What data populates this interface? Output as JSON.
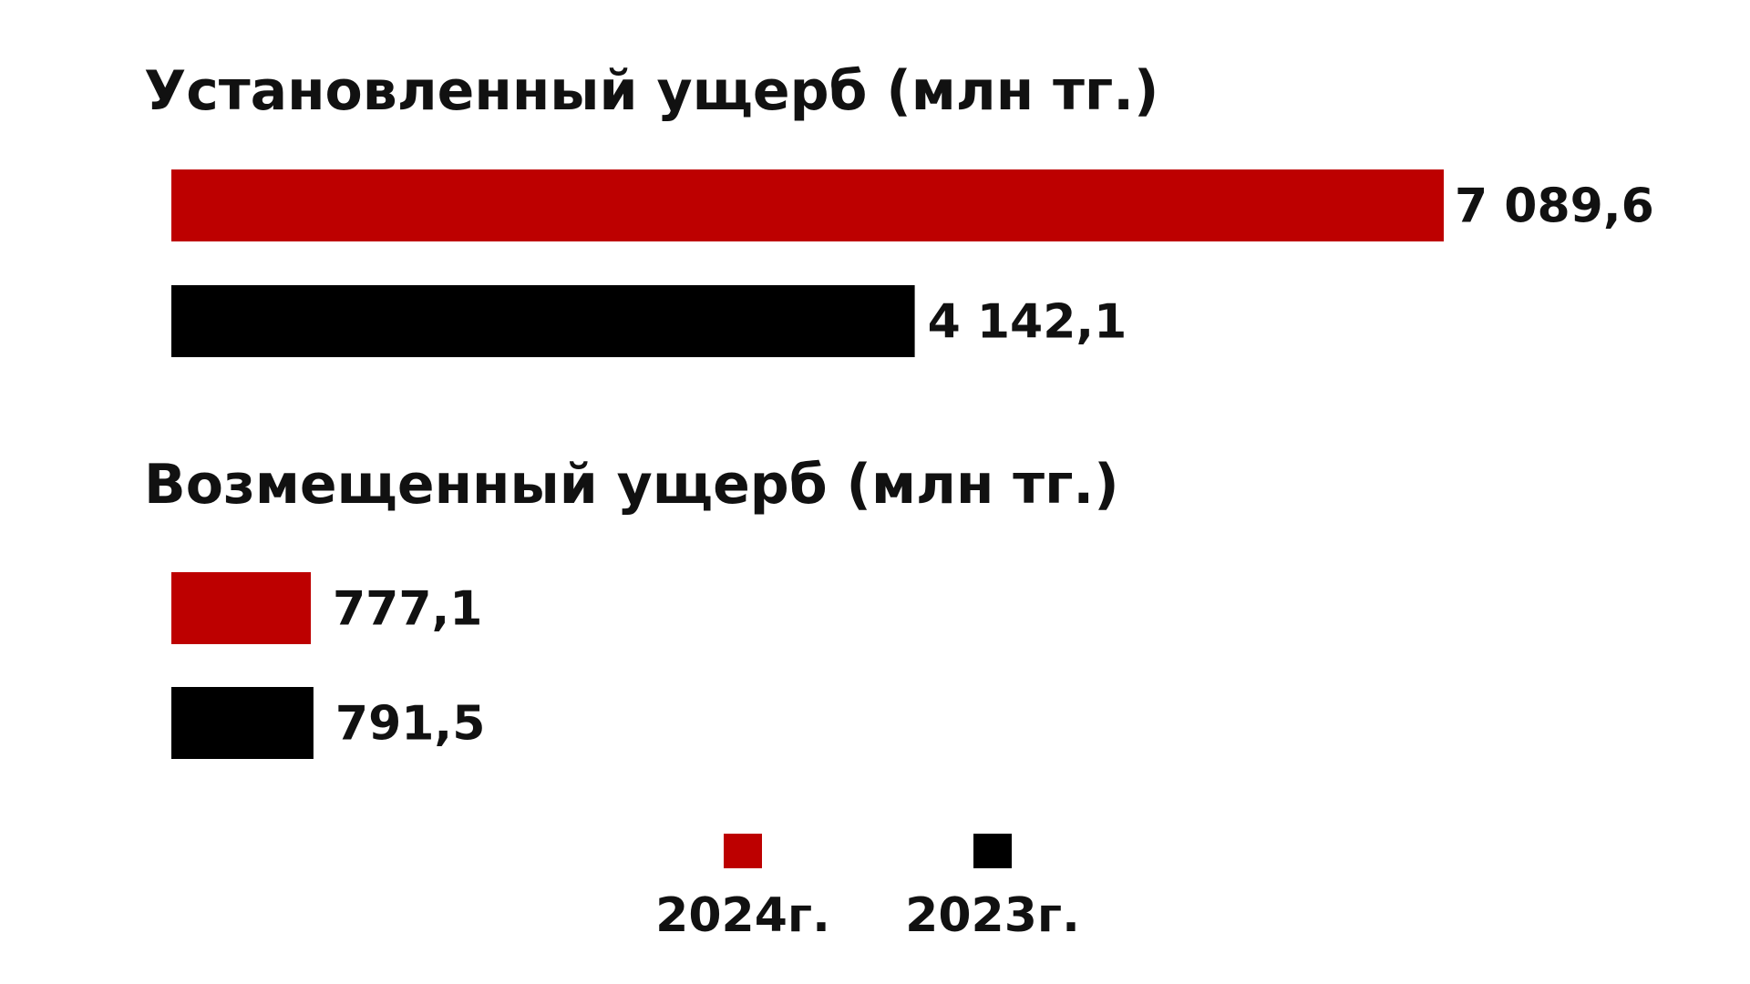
{
  "chart_data": [
    {
      "type": "bar",
      "orientation": "horizontal",
      "title": "Установленный ущерб (млн тг.)",
      "categories": [
        "2024г.",
        "2023г."
      ],
      "values": [
        7089.6,
        4142.1
      ],
      "value_labels": [
        "7 089,6",
        "4 142,1"
      ],
      "xlabel": "",
      "ylabel": "",
      "grid": false
    },
    {
      "type": "bar",
      "orientation": "horizontal",
      "title": "Возмещенный ущерб (млн тг.)",
      "categories": [
        "2024г.",
        "2023г."
      ],
      "values": [
        777.1,
        791.5
      ],
      "value_labels": [
        "777,1",
        "791,5"
      ],
      "xlabel": "",
      "ylabel": "",
      "grid": false
    }
  ],
  "legend": {
    "placement": "bottom-center",
    "items": [
      {
        "label": "2024г.",
        "color": "#bd0000"
      },
      {
        "label": "2023г.",
        "color": "#000000"
      }
    ]
  },
  "colors": {
    "2024": "#bd0000",
    "2023": "#000000"
  }
}
